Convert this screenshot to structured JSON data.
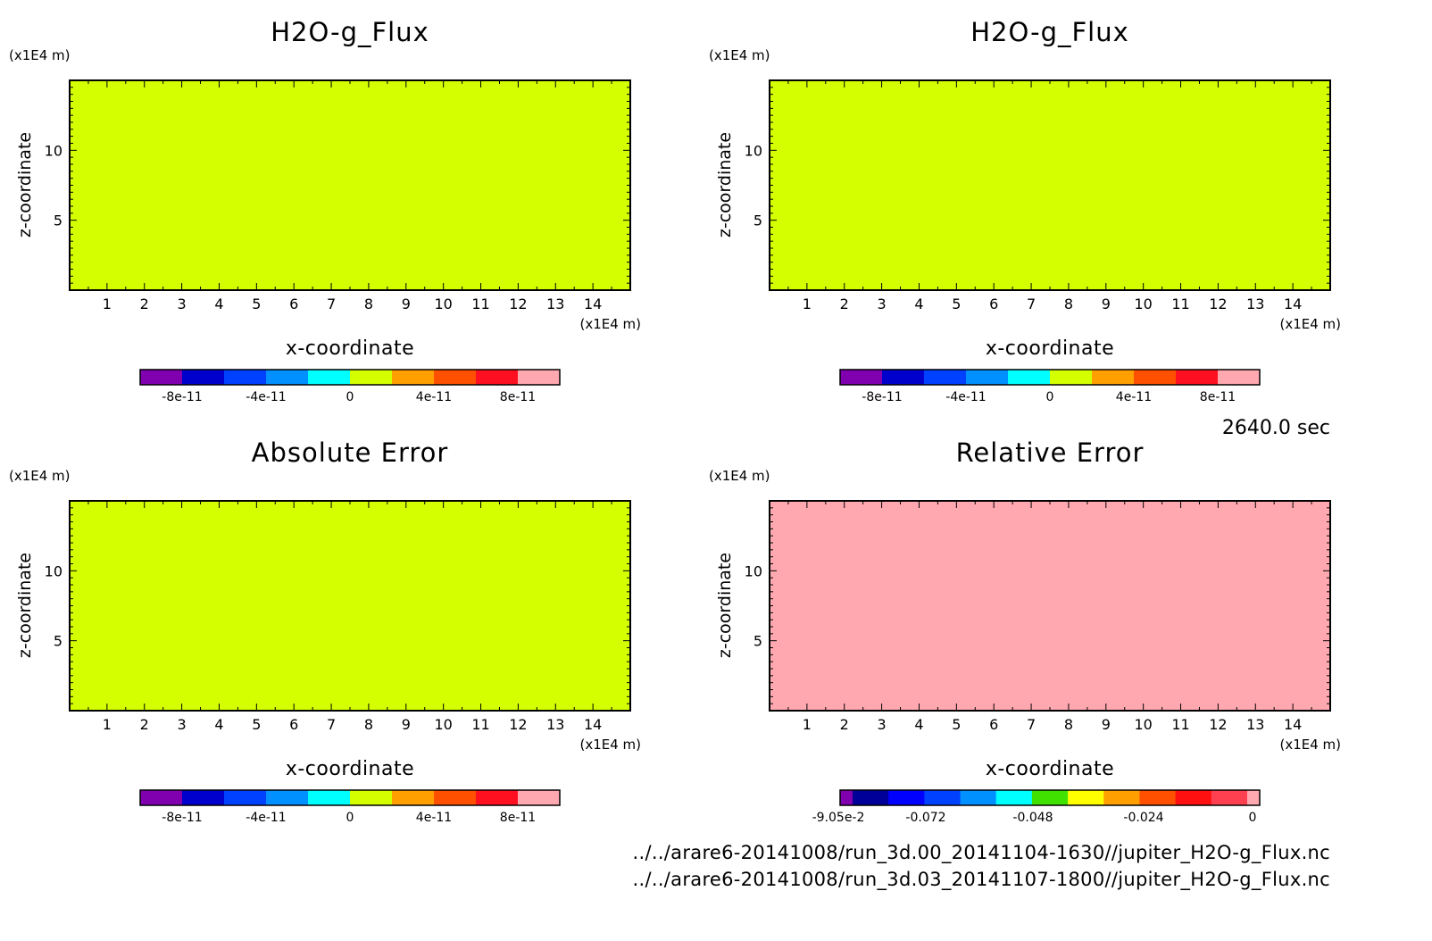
{
  "time_label": "2640.0 sec",
  "file_paths": [
    "../../arare6-20141008/run_3d.00_20141104-1630//jupiter_H2O-g_Flux.nc",
    "../../arare6-20141008/run_3d.03_20141107-1800//jupiter_H2O-g_Flux.nc"
  ],
  "chart_data": [
    {
      "type": "heatmap",
      "title": "H2O-g_Flux",
      "xlabel": "x-coordinate",
      "ylabel": "z-coordinate",
      "x_unit": "(x1E4 m)",
      "y_unit": "(x1E4 m)",
      "xlim": [
        0,
        15
      ],
      "ylim": [
        0,
        15
      ],
      "x_ticks": [
        "1",
        "2",
        "3",
        "4",
        "5",
        "6",
        "7",
        "8",
        "9",
        "10",
        "11",
        "12",
        "13",
        "14"
      ],
      "y_ticks": [
        "5",
        "10"
      ],
      "field_value": 0,
      "field_color": "#d4ff00",
      "colorbar": {
        "colors": [
          "#8000b0",
          "#0000cc",
          "#0040ff",
          "#0090ff",
          "#00ffff",
          "#d4ff00",
          "#ffa000",
          "#ff5000",
          "#ff1020",
          "#ffa8b0"
        ],
        "tick_labels": [
          "-8e-11",
          "-4e-11",
          "0",
          "4e-11",
          "8e-11"
        ]
      }
    },
    {
      "type": "heatmap",
      "title": "H2O-g_Flux",
      "xlabel": "x-coordinate",
      "ylabel": "z-coordinate",
      "x_unit": "(x1E4 m)",
      "y_unit": "(x1E4 m)",
      "xlim": [
        0,
        15
      ],
      "ylim": [
        0,
        15
      ],
      "x_ticks": [
        "1",
        "2",
        "3",
        "4",
        "5",
        "6",
        "7",
        "8",
        "9",
        "10",
        "11",
        "12",
        "13",
        "14"
      ],
      "y_ticks": [
        "5",
        "10"
      ],
      "field_value": 0,
      "field_color": "#d4ff00",
      "colorbar": {
        "colors": [
          "#8000b0",
          "#0000cc",
          "#0040ff",
          "#0090ff",
          "#00ffff",
          "#d4ff00",
          "#ffa000",
          "#ff5000",
          "#ff1020",
          "#ffa8b0"
        ],
        "tick_labels": [
          "-8e-11",
          "-4e-11",
          "0",
          "4e-11",
          "8e-11"
        ]
      }
    },
    {
      "type": "heatmap",
      "title": "Absolute Error",
      "xlabel": "x-coordinate",
      "ylabel": "z-coordinate",
      "x_unit": "(x1E4 m)",
      "y_unit": "(x1E4 m)",
      "xlim": [
        0,
        15
      ],
      "ylim": [
        0,
        15
      ],
      "x_ticks": [
        "1",
        "2",
        "3",
        "4",
        "5",
        "6",
        "7",
        "8",
        "9",
        "10",
        "11",
        "12",
        "13",
        "14"
      ],
      "y_ticks": [
        "5",
        "10"
      ],
      "field_value": 0,
      "field_color": "#d4ff00",
      "colorbar": {
        "colors": [
          "#8000b0",
          "#0000cc",
          "#0040ff",
          "#0090ff",
          "#00ffff",
          "#d4ff00",
          "#ffa000",
          "#ff5000",
          "#ff1020",
          "#ffa8b0"
        ],
        "tick_labels": [
          "-8e-11",
          "-4e-11",
          "0",
          "4e-11",
          "8e-11"
        ]
      }
    },
    {
      "type": "heatmap",
      "title": "Relative Error",
      "xlabel": "x-coordinate",
      "ylabel": "z-coordinate",
      "x_unit": "(x1E4 m)",
      "y_unit": "(x1E4 m)",
      "xlim": [
        0,
        15
      ],
      "ylim": [
        0,
        15
      ],
      "x_ticks": [
        "1",
        "2",
        "3",
        "4",
        "5",
        "6",
        "7",
        "8",
        "9",
        "10",
        "11",
        "12",
        "13",
        "14"
      ],
      "y_ticks": [
        "5",
        "10"
      ],
      "field_value": 0,
      "field_color": "#ffa8b0",
      "colorbar": {
        "colors": [
          "#8000b0",
          "#000099",
          "#0000ff",
          "#0040ff",
          "#0090ff",
          "#00ffff",
          "#40e000",
          "#ffff00",
          "#ffa000",
          "#ff5000",
          "#ff1010",
          "#ff4050",
          "#ffa8b0"
        ],
        "tick_labels": [
          "-9.05e-2",
          "-0.072",
          "-0.048",
          "-0.024",
          "0"
        ]
      }
    }
  ]
}
